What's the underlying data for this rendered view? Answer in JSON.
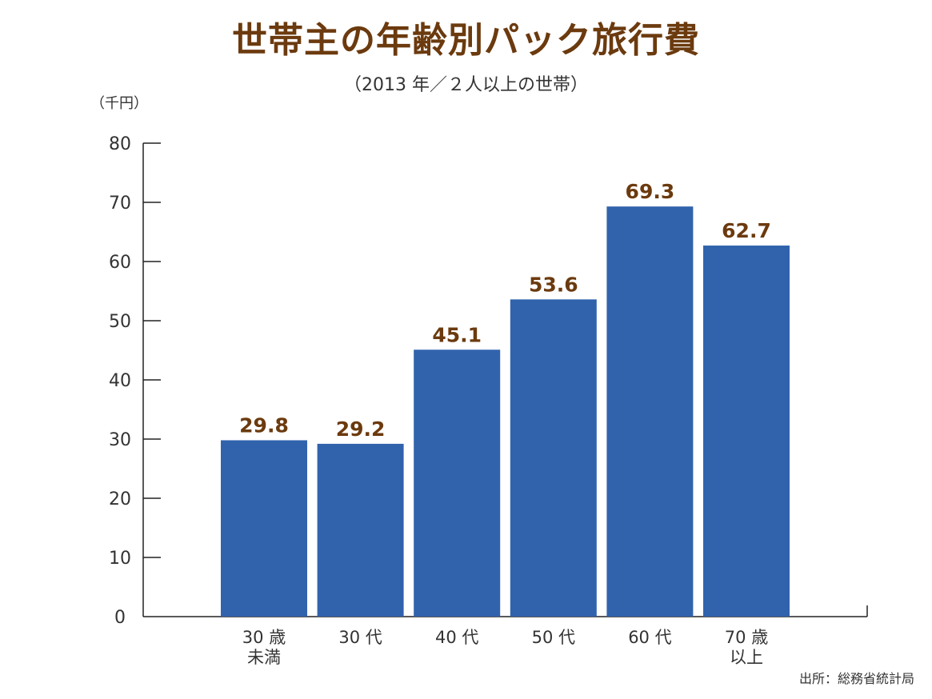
{
  "chart_data": {
    "type": "bar",
    "title": "世帯主の年齢別パック旅行費",
    "subtitle": "（2013 年／２人以上の世帯）",
    "ylabel": "（千円）",
    "xlabel": "",
    "ylim": [
      0,
      80
    ],
    "yticks": [
      "0",
      "10",
      "20",
      "30",
      "40",
      "50",
      "60",
      "70",
      "80"
    ],
    "categories": [
      [
        "30 歳",
        "未満"
      ],
      [
        "30 代"
      ],
      [
        "40 代"
      ],
      [
        "50 代"
      ],
      [
        "60 代"
      ],
      [
        "70 歳",
        "以上"
      ]
    ],
    "values": [
      29.8,
      29.2,
      45.1,
      53.6,
      69.3,
      62.7
    ],
    "value_labels": [
      "29.8",
      "29.2",
      "45.1",
      "53.6",
      "69.3",
      "62.7"
    ],
    "bar_color": "#3163ad",
    "label_color": "#6b3a0e",
    "source": "出所：総務省統計局"
  }
}
